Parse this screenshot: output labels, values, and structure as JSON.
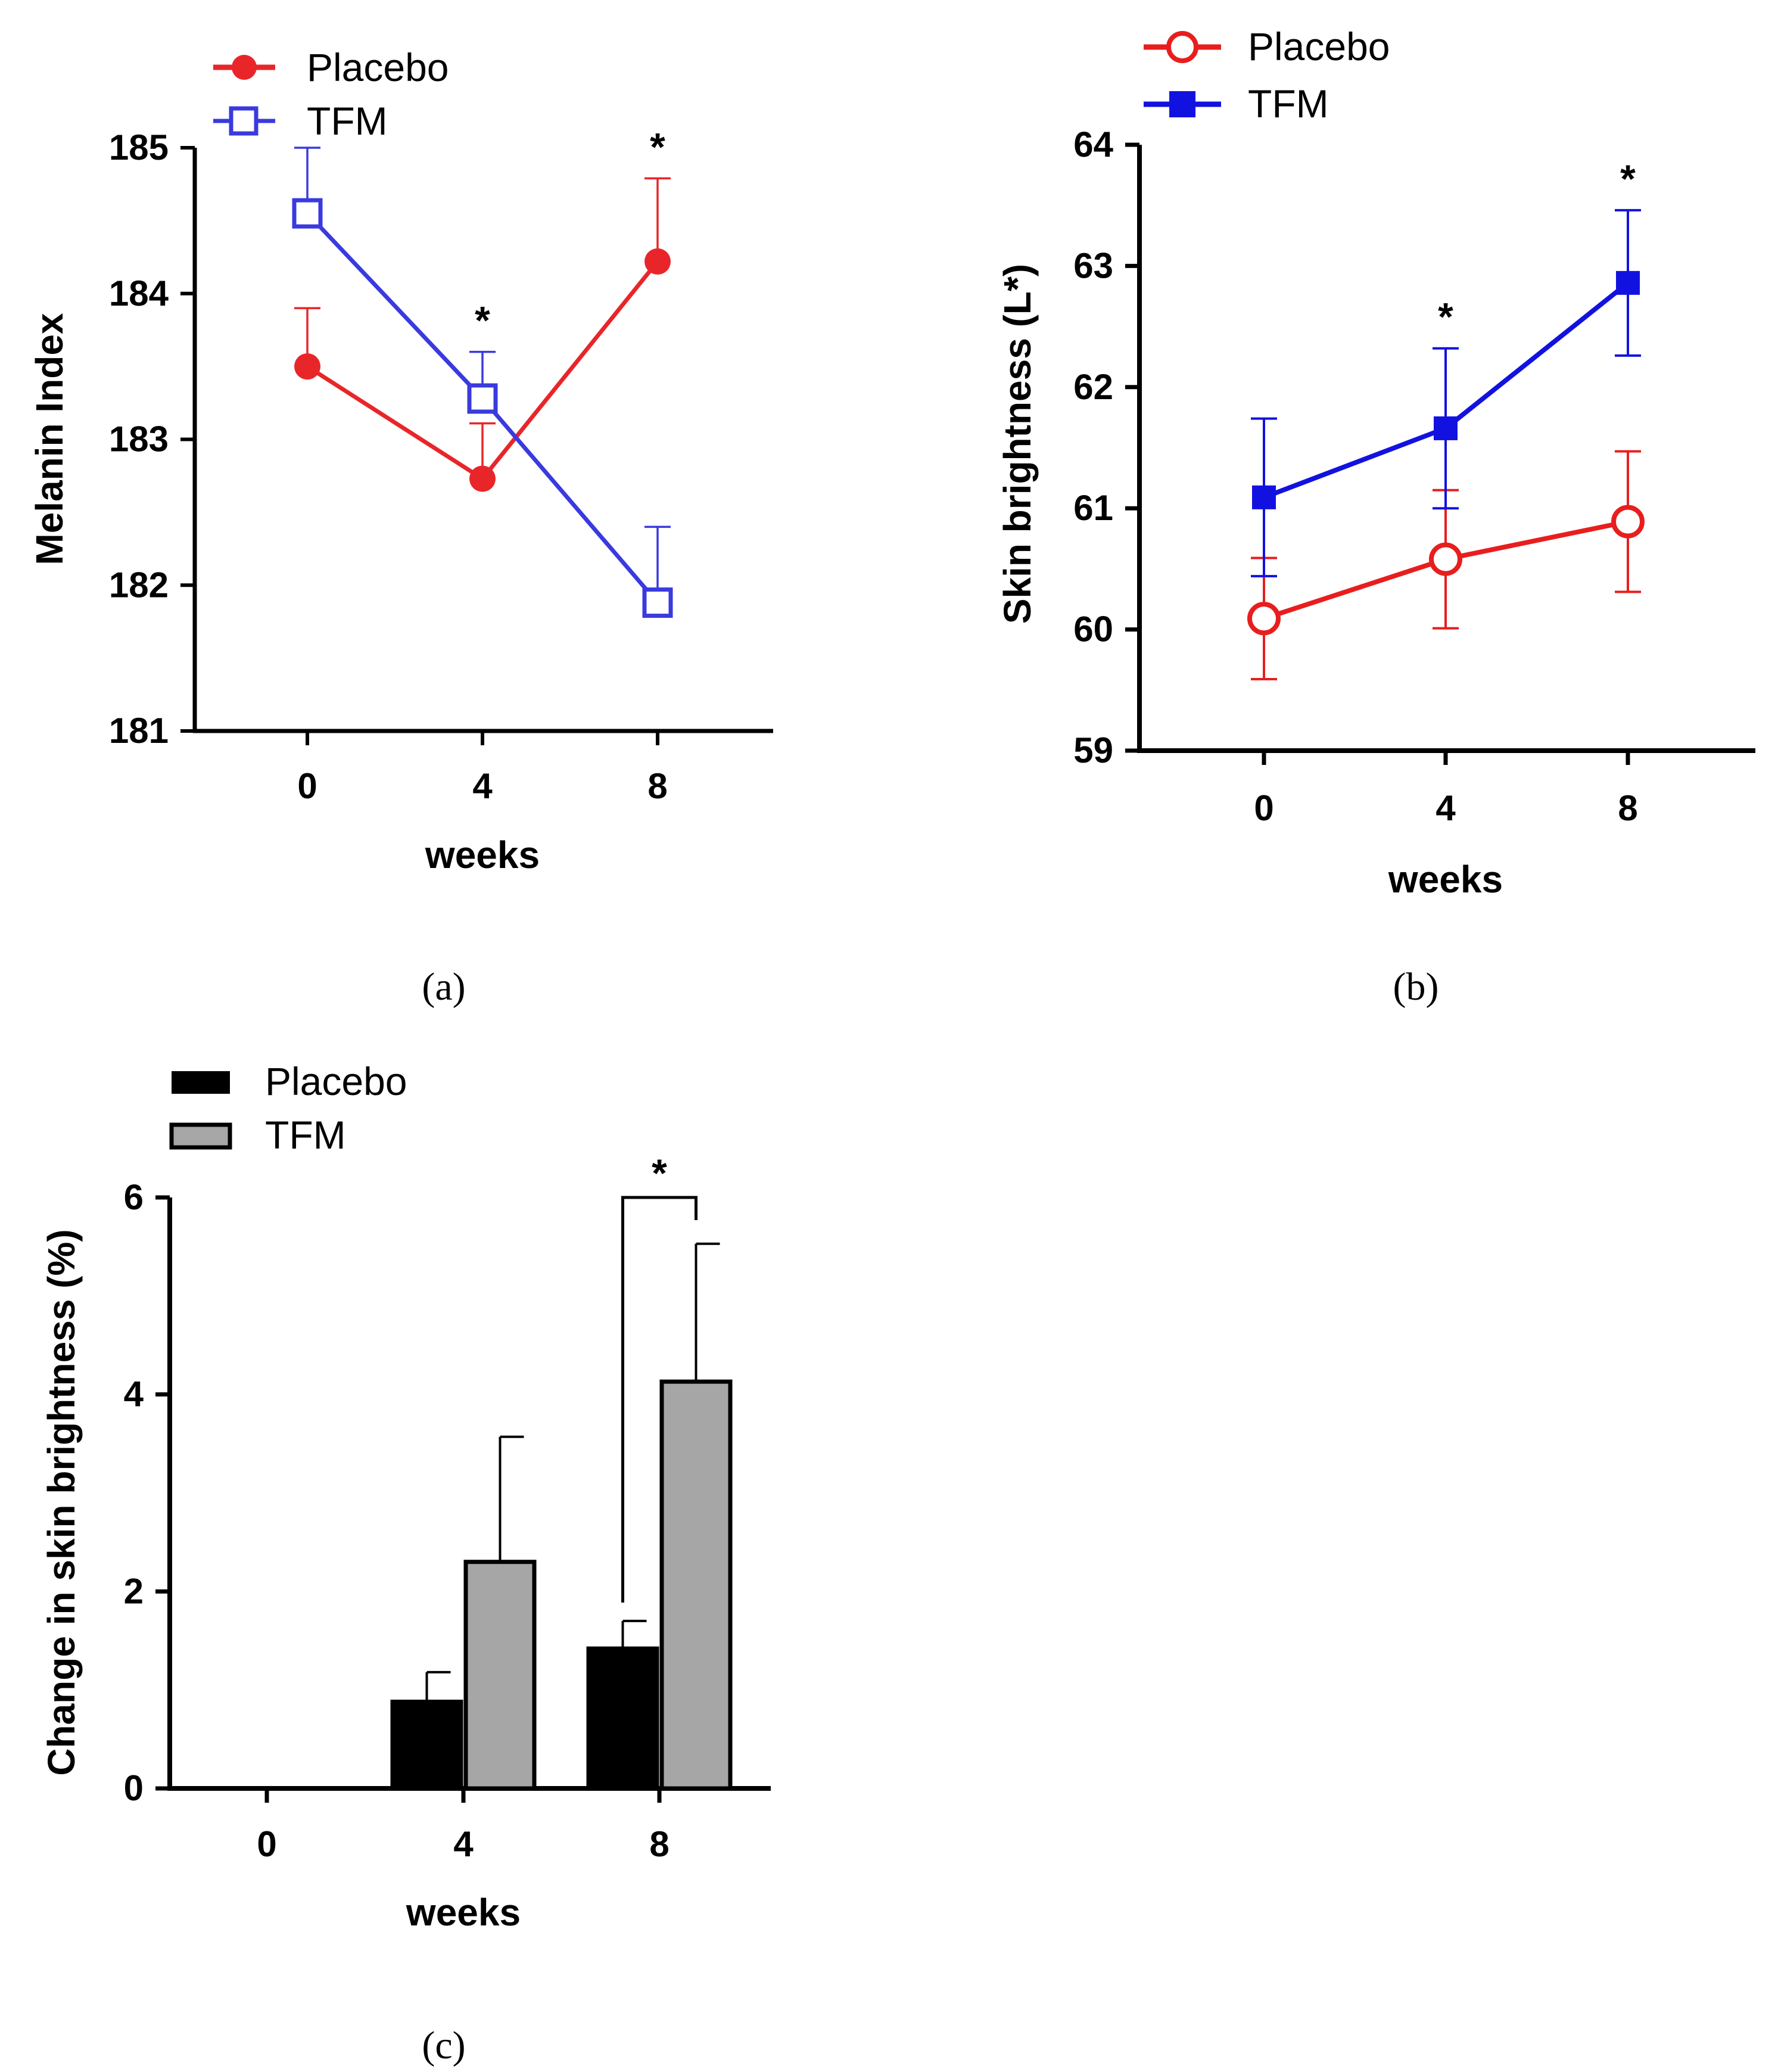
{
  "chart_data": [
    {
      "panel": "(a)",
      "type": "line",
      "title": "",
      "xlabel": "weeks",
      "ylabel": "Melanin Index",
      "ylim": [
        181,
        185
      ],
      "yticks": [
        "181",
        "182",
        "183",
        "184",
        "185"
      ],
      "x": [
        "0",
        "4",
        "8"
      ],
      "legend_placement": "top-left",
      "series": [
        {
          "name": "Placebo",
          "values": [
            183.5,
            182.73,
            184.22
          ],
          "err": [
            0.4,
            0.38,
            0.57
          ],
          "color": "#e8262a",
          "marker": "filled-circle"
        },
        {
          "name": "TFM",
          "values": [
            184.55,
            183.28,
            181.88
          ],
          "err": [
            0.45,
            0.32,
            0.52
          ],
          "color": "#3a3adf",
          "marker": "open-square"
        }
      ],
      "annotations": [
        {
          "x": "4",
          "text": "*"
        },
        {
          "x": "8",
          "text": "*"
        }
      ]
    },
    {
      "panel": "(b)",
      "type": "line",
      "title": "",
      "xlabel": "weeks",
      "ylabel": "Skin brightness (L*)",
      "ylim": [
        59,
        64
      ],
      "yticks": [
        "59",
        "60",
        "61",
        "62",
        "63",
        "64"
      ],
      "x": [
        "0",
        "4",
        "8"
      ],
      "legend_placement": "top-left",
      "series": [
        {
          "name": "Placebo",
          "values": [
            60.09,
            60.58,
            60.89
          ],
          "err": [
            0.5,
            0.57,
            0.58
          ],
          "color": "#e81e1e",
          "marker": "open-circle"
        },
        {
          "name": "TFM",
          "values": [
            61.09,
            61.66,
            62.86
          ],
          "err": [
            0.65,
            0.66,
            0.6
          ],
          "color": "#1212e0",
          "marker": "filled-square"
        }
      ],
      "annotations": [
        {
          "x": "4",
          "text": "*"
        },
        {
          "x": "8",
          "text": "*"
        }
      ]
    },
    {
      "panel": "(c)",
      "type": "bar",
      "title": "",
      "xlabel": "weeks",
      "ylabel": "Change in skin brightness (%)",
      "ylim": [
        0,
        6
      ],
      "yticks": [
        "0",
        "2",
        "4",
        "6"
      ],
      "categories": [
        "0",
        "4",
        "8"
      ],
      "legend_placement": "top-left",
      "series": [
        {
          "name": "Placebo",
          "values": [
            0,
            0.88,
            1.42
          ],
          "err": [
            0,
            0.3,
            0.28
          ],
          "color": "#000000"
        },
        {
          "name": "TFM",
          "values": [
            0,
            2.3,
            4.13
          ],
          "err": [
            0,
            1.27,
            1.4
          ],
          "color": "#a6a6a6"
        }
      ],
      "annotations": [
        {
          "x": "8",
          "text": "*"
        }
      ]
    }
  ]
}
